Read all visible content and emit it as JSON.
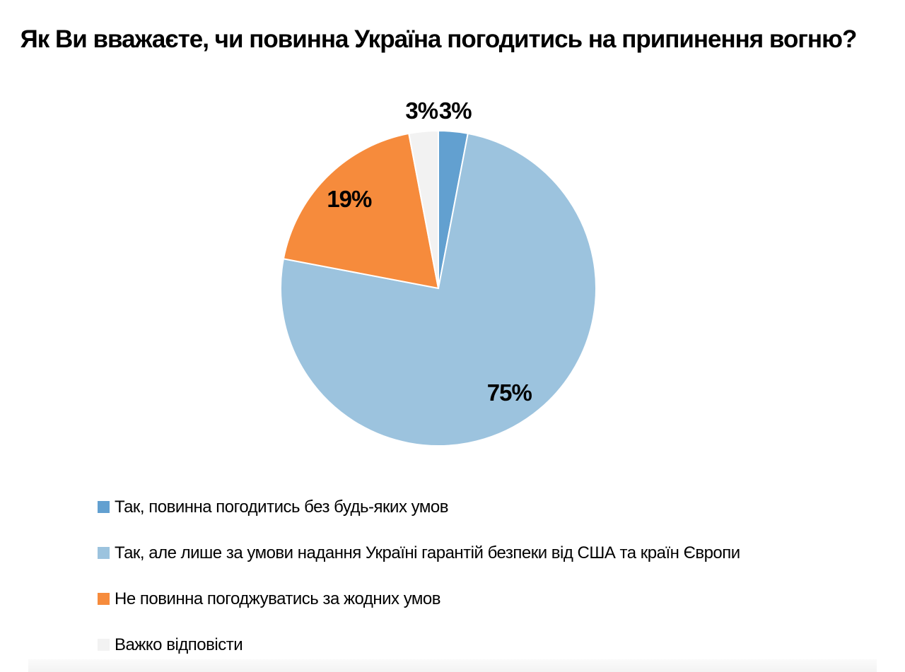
{
  "chart_data": {
    "type": "pie",
    "title": "Як Ви вважаєте, чи повинна Україна погодитись на припинення вогню?",
    "categories": [
      "Так, повинна погодитись без будь-яких умов",
      "Так, але лише за умови надання Україні гарантій безпеки від США та країн Європи",
      "Не повинна погоджуватись за жодних умов",
      "Важко відповісти"
    ],
    "values": [
      3,
      75,
      19,
      3
    ],
    "data_labels": [
      "3%",
      "75%",
      "19%",
      "3%"
    ],
    "colors": [
      "#62A0D0",
      "#9CC3DE",
      "#F68B3C",
      "#F2F2F2"
    ],
    "slice_border_color": "#ffffff",
    "label_color": "#000000",
    "start_angle_deg": 0,
    "direction": "clockwise",
    "legend_position": "bottom-left",
    "grid": false
  }
}
